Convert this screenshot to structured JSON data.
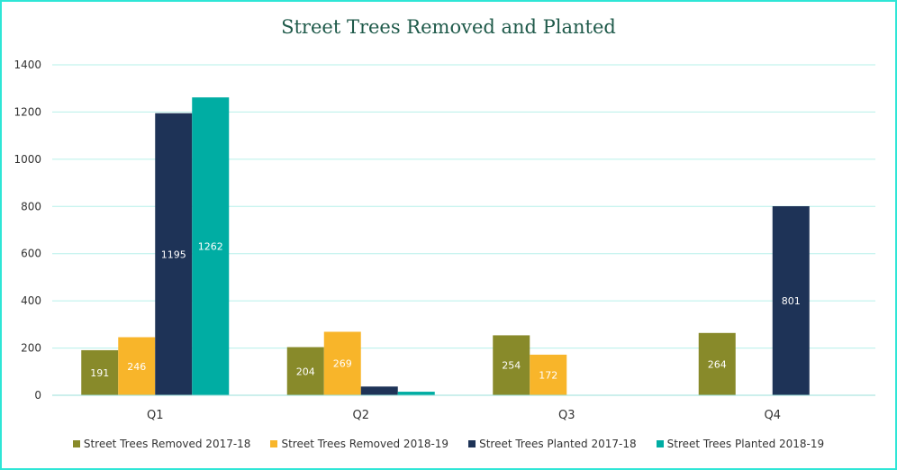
{
  "chart_data": {
    "type": "bar",
    "title": "Street Trees Removed and Planted",
    "categories": [
      "Q1",
      "Q2",
      "Q3",
      "Q4"
    ],
    "ylim": [
      0,
      1400
    ],
    "yticks": [
      0,
      200,
      400,
      600,
      800,
      1000,
      1200,
      1400
    ],
    "grid": true,
    "legend_position": "bottom",
    "series": [
      {
        "name": "Street Trees Removed 2017-18",
        "color": "#888a2a",
        "values": [
          191,
          204,
          254,
          264
        ],
        "labels": [
          "191",
          "204",
          "254",
          "264"
        ]
      },
      {
        "name": "Street Trees Removed 2018-19",
        "color": "#f8b52a",
        "values": [
          246,
          269,
          172,
          null
        ],
        "labels": [
          "246",
          "269",
          "172",
          ""
        ]
      },
      {
        "name": "Street Trees Planted 2017-18",
        "color": "#1e3357",
        "values": [
          1195,
          37,
          null,
          801
        ],
        "labels": [
          "1195",
          "",
          "",
          "801"
        ]
      },
      {
        "name": "Street Trees Planted 2018-19",
        "color": "#00ada3",
        "values": [
          1262,
          15,
          null,
          null
        ],
        "labels": [
          "1262",
          "",
          "",
          ""
        ]
      }
    ],
    "gridline_color": "#b6f0ea"
  }
}
